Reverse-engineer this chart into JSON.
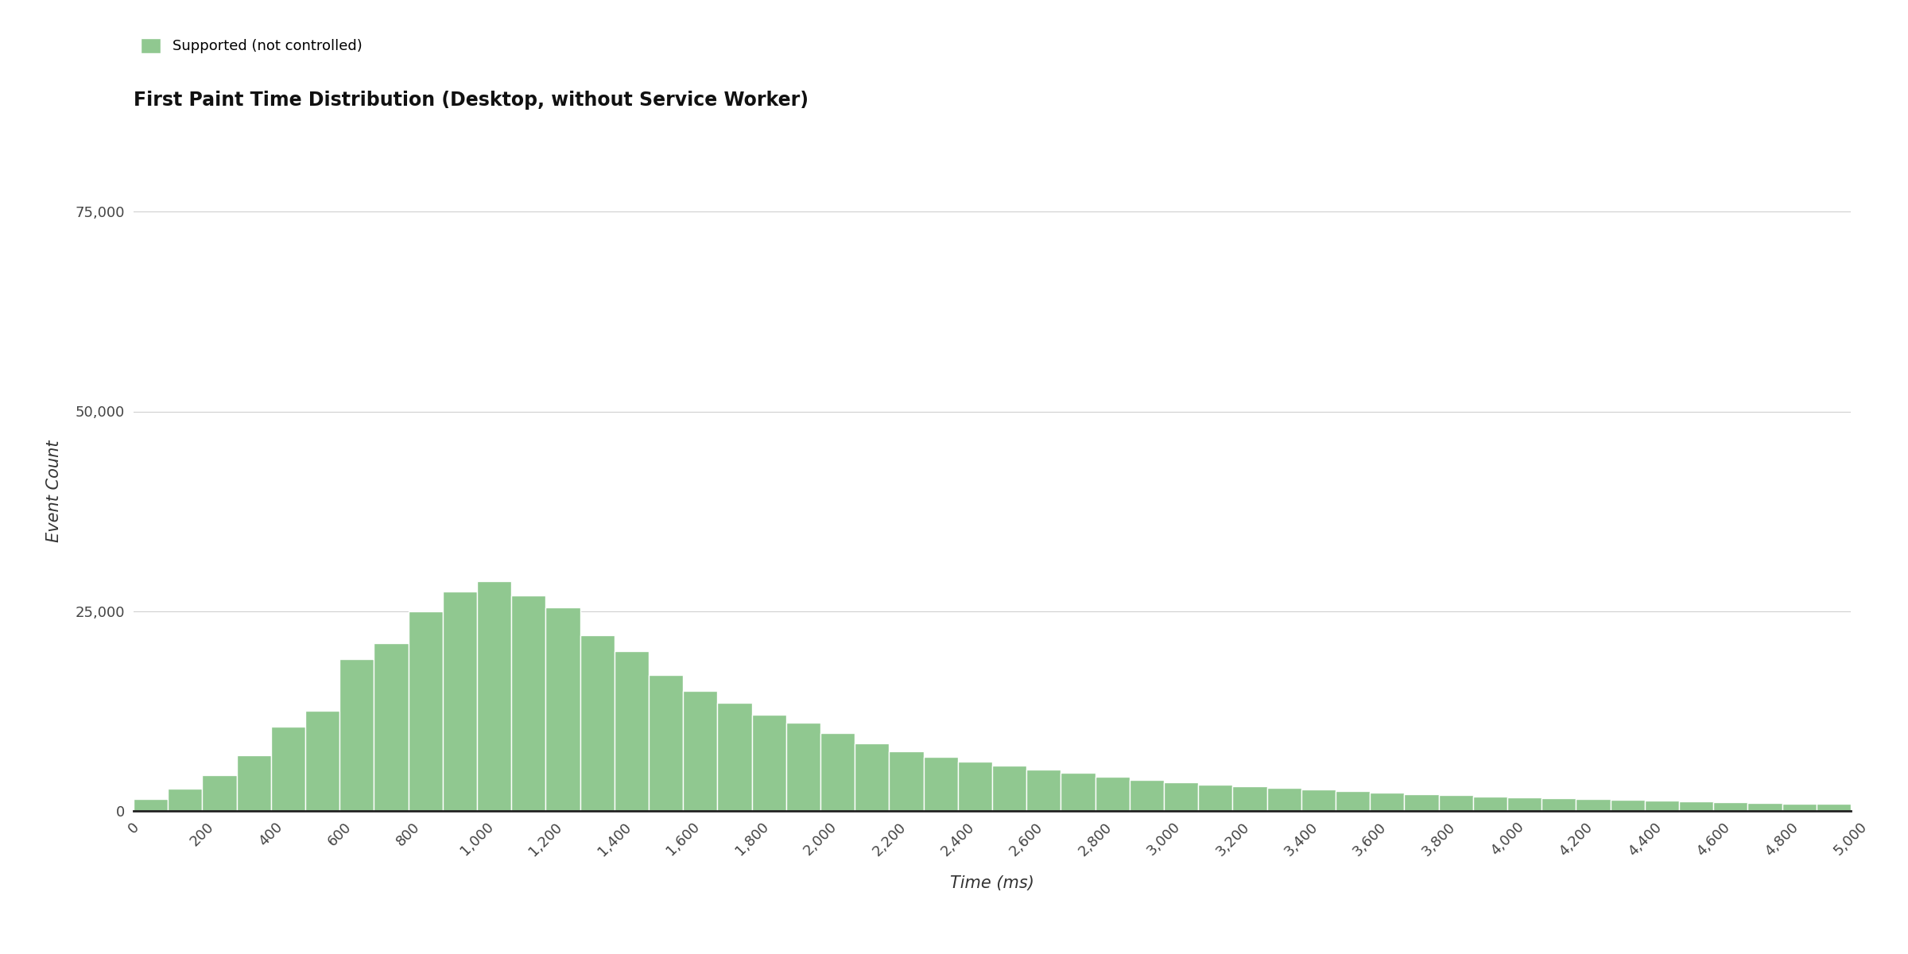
{
  "title": "First Paint Time Distribution (Desktop, without Service Worker)",
  "xlabel": "Time (ms)",
  "ylabel": "Event Count",
  "legend_label": "Supported (not controlled)",
  "bar_color": "#90c890",
  "bar_edge_color": "#ffffff",
  "background_color": "#ffffff",
  "grid_color": "#d0d0d0",
  "ylim": [
    0,
    80000
  ],
  "xlim": [
    0,
    5000
  ],
  "bin_width": 100,
  "yticks": [
    0,
    25000,
    50000,
    75000
  ],
  "xticks": [
    0,
    200,
    400,
    600,
    800,
    1000,
    1200,
    1400,
    1600,
    1800,
    2000,
    2200,
    2400,
    2600,
    2800,
    3000,
    3200,
    3400,
    3600,
    3800,
    4000,
    4200,
    4400,
    4600,
    4800,
    5000
  ],
  "values": [
    1500,
    2800,
    4500,
    7000,
    10500,
    12500,
    19000,
    21000,
    25000,
    27500,
    28800,
    27000,
    25500,
    22000,
    20000,
    17000,
    15000,
    13500,
    12000,
    11000,
    9800,
    8500,
    7500,
    6800,
    6200,
    5700,
    5200,
    4800,
    4300,
    3900,
    3600,
    3300,
    3100,
    2900,
    2700,
    2500,
    2300,
    2100,
    1950,
    1800,
    1700,
    1600,
    1500,
    1400,
    1300,
    1200,
    1100,
    1000,
    900,
    850
  ]
}
